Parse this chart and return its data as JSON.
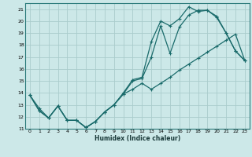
{
  "title": "",
  "xlabel": "Humidex (Indice chaleur)",
  "ylabel": "",
  "bg_color": "#cce8e8",
  "line_color": "#1a6b6b",
  "grid_color": "#aacccc",
  "xlim": [
    -0.5,
    23.5
  ],
  "ylim": [
    11,
    21.5
  ],
  "xticks": [
    0,
    1,
    2,
    3,
    4,
    5,
    6,
    7,
    8,
    9,
    10,
    11,
    12,
    13,
    14,
    15,
    16,
    17,
    18,
    19,
    20,
    21,
    22,
    23
  ],
  "yticks": [
    11,
    12,
    13,
    14,
    15,
    16,
    17,
    18,
    19,
    20,
    21
  ],
  "line1_x": [
    0,
    1,
    2,
    3,
    4,
    5,
    6,
    7,
    8,
    9,
    10,
    11,
    12,
    13,
    14,
    15,
    16,
    17,
    18,
    19,
    20,
    21,
    22,
    23
  ],
  "line1_y": [
    13.8,
    12.5,
    11.9,
    12.9,
    11.7,
    11.7,
    11.1,
    11.6,
    12.4,
    13.0,
    13.9,
    15.0,
    15.2,
    17.0,
    19.6,
    17.3,
    19.5,
    20.5,
    20.9,
    20.9,
    20.3,
    19.0,
    17.5,
    16.7
  ],
  "line2_x": [
    0,
    1,
    2,
    3,
    4,
    5,
    6,
    7,
    8,
    9,
    10,
    11,
    12,
    13,
    14,
    15,
    16,
    17,
    18,
    19,
    20,
    21,
    22,
    23
  ],
  "line2_y": [
    13.8,
    12.5,
    11.9,
    12.9,
    11.7,
    11.7,
    11.1,
    11.6,
    12.4,
    13.0,
    14.0,
    15.1,
    15.3,
    18.3,
    20.0,
    19.6,
    20.2,
    21.2,
    20.8,
    20.9,
    20.4,
    19.0,
    17.5,
    16.7
  ],
  "line3_x": [
    0,
    1,
    2,
    3,
    4,
    5,
    6,
    7,
    8,
    9,
    10,
    11,
    12,
    13,
    14,
    15,
    16,
    17,
    18,
    19,
    20,
    21,
    22,
    23
  ],
  "line3_y": [
    13.8,
    12.7,
    11.9,
    12.9,
    11.7,
    11.7,
    11.1,
    11.6,
    12.4,
    13.0,
    13.9,
    14.3,
    14.8,
    14.3,
    14.8,
    15.3,
    15.9,
    16.4,
    16.9,
    17.4,
    17.9,
    18.4,
    18.9,
    16.7
  ]
}
